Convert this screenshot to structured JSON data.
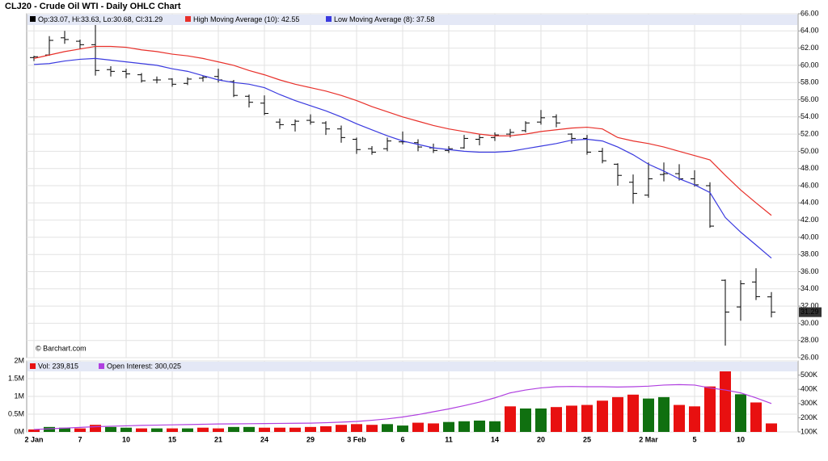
{
  "chart_data": [
    {
      "type": "ohlc",
      "title": "CLJ20 - Crude Oil WTI - Daily OHLC Chart",
      "source": "© Barchart.com",
      "ohlc_legend": "Op:33.07, Hi:33.63, Lo:30.68, Cl:31.29",
      "open": [
        60.9,
        61.2,
        63.2,
        62.8,
        62.4,
        59.5,
        59.3,
        58.9,
        58.3,
        58.4,
        57.9,
        58.5,
        58.7,
        58.1,
        56.4,
        55.6,
        53.4,
        53.1,
        53.6,
        53.3,
        52.6,
        51.4,
        50.3,
        50.3,
        51.1,
        51.0,
        50.4,
        50.1,
        50.4,
        51.4,
        51.6,
        52.0,
        52.4,
        53.4,
        54.0,
        52.0,
        51.5,
        50.0,
        48.5,
        46.4,
        44.9,
        47.3,
        47.4,
        46.8,
        46.0,
        35.0,
        31.9,
        34.8,
        33.07
      ],
      "high": [
        61.1,
        63.4,
        64.0,
        63.0,
        65.0,
        59.9,
        59.6,
        59.1,
        58.7,
        58.5,
        58.6,
        58.8,
        59.6,
        58.3,
        56.6,
        56.5,
        53.8,
        53.7,
        54.3,
        53.5,
        53.0,
        51.6,
        50.6,
        51.6,
        52.3,
        51.4,
        50.9,
        50.6,
        51.9,
        52.0,
        52.2,
        52.6,
        53.5,
        54.8,
        54.3,
        52.1,
        51.9,
        50.4,
        48.6,
        47.3,
        48.7,
        48.7,
        48.5,
        47.8,
        46.4,
        35.1,
        35.0,
        36.4,
        33.63
      ],
      "low": [
        60.5,
        61.1,
        62.5,
        61.9,
        58.8,
        58.7,
        58.5,
        58.0,
        57.9,
        57.5,
        57.7,
        58.1,
        58.0,
        56.3,
        55.1,
        54.2,
        52.6,
        52.3,
        53.1,
        51.9,
        51.0,
        49.7,
        49.6,
        50.0,
        50.8,
        50.0,
        49.8,
        49.8,
        50.3,
        50.7,
        51.2,
        51.6,
        52.2,
        53.1,
        52.8,
        50.9,
        49.6,
        48.6,
        46.0,
        43.9,
        44.6,
        46.5,
        46.6,
        45.9,
        41.1,
        27.4,
        30.3,
        32.7,
        30.68
      ],
      "close": [
        61.0,
        62.9,
        63.0,
        62.4,
        59.4,
        59.3,
        59.0,
        58.2,
        58.3,
        57.8,
        58.4,
        58.6,
        58.3,
        56.5,
        55.7,
        54.4,
        53.1,
        53.5,
        53.4,
        52.6,
        51.6,
        50.2,
        49.9,
        51.2,
        51.1,
        50.5,
        50.1,
        50.3,
        51.5,
        51.6,
        51.9,
        52.2,
        53.3,
        53.9,
        53.3,
        51.5,
        49.9,
        48.9,
        47.2,
        45.1,
        46.8,
        47.4,
        46.8,
        46.1,
        41.3,
        31.3,
        34.6,
        33.1,
        31.29
      ],
      "series": [
        {
          "name": "High Moving Average (10): 42.55",
          "color": "#e8302a",
          "values": [
            60.8,
            61.2,
            61.6,
            61.9,
            62.2,
            62.2,
            62.1,
            61.8,
            61.6,
            61.3,
            61.1,
            60.8,
            60.4,
            60.0,
            59.4,
            58.9,
            58.3,
            57.8,
            57.4,
            57.0,
            56.5,
            55.9,
            55.2,
            54.6,
            54.0,
            53.5,
            53.0,
            52.6,
            52.3,
            52.0,
            51.8,
            51.8,
            52.0,
            52.3,
            52.5,
            52.7,
            52.8,
            52.6,
            51.6,
            51.2,
            50.9,
            50.5,
            50.0,
            49.5,
            49.0,
            47.2,
            45.5,
            44.0,
            42.55
          ]
        },
        {
          "name": "Low Moving Average (8): 37.58",
          "color": "#3a3adf",
          "values": [
            60.1,
            60.2,
            60.5,
            60.7,
            60.8,
            60.6,
            60.4,
            60.2,
            60.0,
            59.6,
            59.3,
            58.8,
            58.3,
            58.0,
            57.8,
            57.4,
            56.6,
            55.9,
            55.3,
            54.7,
            54.0,
            53.2,
            52.5,
            51.8,
            51.2,
            50.8,
            50.4,
            50.2,
            50.0,
            49.9,
            49.9,
            50.0,
            50.3,
            50.6,
            50.9,
            51.3,
            51.4,
            51.2,
            50.5,
            49.6,
            48.5,
            47.7,
            46.8,
            46.1,
            45.2,
            42.3,
            40.6,
            39.1,
            37.58
          ]
        }
      ],
      "ylim": [
        26,
        66
      ],
      "yticks": [
        {
          "value": 26,
          "label": "26.00"
        },
        {
          "value": 28,
          "label": "28.00"
        },
        {
          "value": 30,
          "label": "30.00"
        },
        {
          "value": 32,
          "label": "32.00"
        },
        {
          "value": 34,
          "label": "34.00"
        },
        {
          "value": 36,
          "label": "36.00"
        },
        {
          "value": 38,
          "label": "38.00"
        },
        {
          "value": 40,
          "label": "40.00"
        },
        {
          "value": 42,
          "label": "42.00"
        },
        {
          "value": 44,
          "label": "44.00"
        },
        {
          "value": 46,
          "label": "46.00"
        },
        {
          "value": 48,
          "label": "48.00"
        },
        {
          "value": 50,
          "label": "50.00"
        },
        {
          "value": 52,
          "label": "52.00"
        },
        {
          "value": 54,
          "label": "54.00"
        },
        {
          "value": 56,
          "label": "56.00"
        },
        {
          "value": 58,
          "label": "58.00"
        },
        {
          "value": 60,
          "label": "60.00"
        },
        {
          "value": 62,
          "label": "62.00"
        },
        {
          "value": 64,
          "label": "64.00"
        },
        {
          "value": 66,
          "label": "66.00"
        }
      ],
      "grid": true
    },
    {
      "type": "bar",
      "categories": [
        "2 Jan",
        null,
        null,
        "7",
        null,
        null,
        "10",
        null,
        null,
        "15",
        null,
        null,
        "21",
        null,
        null,
        "24",
        null,
        null,
        "29",
        null,
        null,
        "3 Feb",
        null,
        null,
        "6",
        null,
        null,
        "11",
        null,
        null,
        "14",
        null,
        null,
        "20",
        null,
        null,
        "25",
        null,
        null,
        null,
        "2 Mar",
        null,
        null,
        "5",
        null,
        null,
        "10",
        null,
        null
      ],
      "series": [
        {
          "name": "Vol: 239,815",
          "color": "#e81010",
          "colors": [
            "#e81010",
            "#107010",
            "#107010",
            "#e81010",
            "#e81010",
            "#107010",
            "#107010",
            "#e81010",
            "#107010",
            "#e81010",
            "#107010",
            "#e81010",
            "#e81010",
            "#107010",
            "#107010",
            "#e81010",
            "#e81010",
            "#e81010",
            "#e81010",
            "#e81010",
            "#e81010",
            "#e81010",
            "#e81010",
            "#107010",
            "#107010",
            "#e81010",
            "#e81010",
            "#107010",
            "#107010",
            "#107010",
            "#107010",
            "#e81010",
            "#107010",
            "#107010",
            "#e81010",
            "#e81010",
            "#e81010",
            "#e81010",
            "#e81010",
            "#e81010",
            "#107010",
            "#107010",
            "#e81010",
            "#e81010",
            "#e81010",
            "#e81010",
            "#107010",
            "#e81010",
            "#e81010"
          ],
          "values": [
            70000,
            140000,
            120000,
            100000,
            200000,
            140000,
            120000,
            100000,
            100000,
            100000,
            100000,
            120000,
            100000,
            140000,
            140000,
            120000,
            120000,
            120000,
            140000,
            160000,
            200000,
            220000,
            200000,
            220000,
            180000,
            260000,
            240000,
            280000,
            300000,
            320000,
            300000,
            720000,
            660000,
            660000,
            700000,
            740000,
            760000,
            880000,
            980000,
            1050000,
            940000,
            980000,
            760000,
            720000,
            1280000,
            1750000,
            1060000,
            830000,
            239815
          ]
        },
        {
          "name": "Open Interest: 300,025",
          "color": "#b040e0",
          "axis": "y2",
          "values": [
            117000,
            122000,
            127000,
            132000,
            137000,
            140000,
            143000,
            146000,
            148000,
            150000,
            152000,
            154000,
            156000,
            157000,
            158000,
            159000,
            160000,
            161000,
            162000,
            165000,
            169000,
            174000,
            182000,
            192000,
            205000,
            222000,
            242000,
            262000,
            285000,
            310000,
            340000,
            375000,
            395000,
            410000,
            418000,
            420000,
            418000,
            418000,
            416000,
            418000,
            422000,
            430000,
            433000,
            430000,
            410000,
            395000,
            375000,
            340000,
            300025
          ]
        }
      ],
      "ylim": [
        0,
        2000000
      ],
      "yticks": [
        {
          "value": 0,
          "label": "0M"
        },
        {
          "value": 500000,
          "label": "0.5M"
        },
        {
          "value": 1000000,
          "label": "1M"
        },
        {
          "value": 1500000,
          "label": "1.5M"
        },
        {
          "value": 2000000,
          "label": "2M"
        }
      ],
      "y2lim": [
        100000,
        600000
      ],
      "y2ticks": [
        {
          "value": 100000,
          "label": "100K"
        },
        {
          "value": 200000,
          "label": "200K"
        },
        {
          "value": 300000,
          "label": "300K"
        },
        {
          "value": 400000,
          "label": "400K"
        },
        {
          "value": 500000,
          "label": "500K"
        }
      ],
      "grid": true
    }
  ]
}
